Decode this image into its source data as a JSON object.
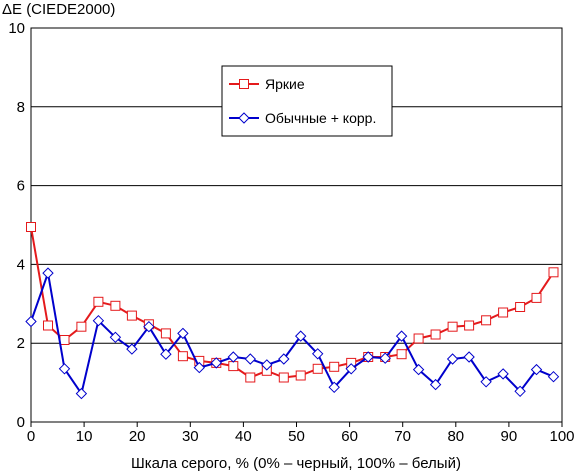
{
  "chart_data": {
    "type": "line",
    "title": "",
    "ylabel": "ΔE (CIEDE2000)",
    "xlabel": "Шкала серого, % (0% – черный, 100% – белый)",
    "xlim": [
      0,
      100
    ],
    "ylim": [
      0,
      10
    ],
    "xticks": [
      "0",
      "10",
      "20",
      "30",
      "40",
      "50",
      "60",
      "70",
      "80",
      "90",
      "100"
    ],
    "yticks": [
      "0",
      "2",
      "4",
      "6",
      "8",
      "10"
    ],
    "grid": "horizontal",
    "legend_position": "top-center",
    "x": [
      0,
      3.2,
      6.3,
      9.5,
      12.7,
      15.9,
      19,
      22.2,
      25.4,
      28.6,
      31.7,
      34.9,
      38.1,
      41.3,
      44.4,
      47.6,
      50.8,
      54,
      57.1,
      60.3,
      63.5,
      66.7,
      69.8,
      73,
      76.2,
      79.4,
      82.5,
      85.7,
      88.9,
      92.1,
      95.2,
      98.4
    ],
    "series": [
      {
        "name": "Яркие",
        "color": "#e41a1c",
        "marker": "square",
        "values": [
          4.95,
          2.45,
          2.08,
          2.42,
          3.05,
          2.95,
          2.7,
          2.48,
          2.25,
          1.67,
          1.55,
          1.5,
          1.42,
          1.13,
          1.3,
          1.13,
          1.18,
          1.35,
          1.4,
          1.5,
          1.65,
          1.65,
          1.72,
          2.12,
          2.22,
          2.42,
          2.45,
          2.58,
          2.78,
          2.92,
          3.15,
          3.8
        ]
      },
      {
        "name": "Обычные + корр.",
        "color": "#0000cc",
        "marker": "diamond",
        "values": [
          2.55,
          3.78,
          1.35,
          0.72,
          2.57,
          2.15,
          1.85,
          2.42,
          1.72,
          2.25,
          1.38,
          1.5,
          1.65,
          1.6,
          1.45,
          1.6,
          2.18,
          1.73,
          0.88,
          1.35,
          1.65,
          1.62,
          2.18,
          1.33,
          0.95,
          1.6,
          1.65,
          1.02,
          1.22,
          0.78,
          1.33,
          1.15
        ]
      }
    ]
  }
}
